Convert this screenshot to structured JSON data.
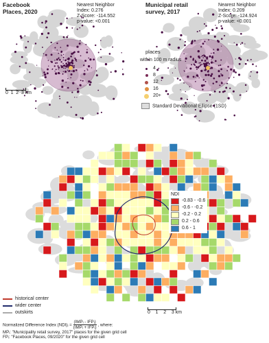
{
  "maps": [
    {
      "title": "Facebook Places, 2020",
      "stats": [
        "Nearest Neighbor",
        "Index: 0.276",
        "Z-Score: -114.552",
        "p-value: <0.001"
      ]
    },
    {
      "title": "Municipal retail survey, 2017",
      "stats": [
        "Nearest Neighbor",
        "Index: 0.209",
        "Z-Score: -124.924",
        "p-value: <0.001"
      ]
    }
  ],
  "places_legend": {
    "title": "places",
    "subtitle": "within 100 m radius",
    "classes": [
      "4",
      "8",
      "12",
      "16",
      "20+"
    ],
    "ellipse": "Standard Deviational Ellipse (1SD)"
  },
  "scale_top": [
    "0",
    "1",
    "2",
    "3 km"
  ],
  "ndi_legend": {
    "title": "NDI",
    "classes": [
      {
        "label": "-0.83 - -0.6",
        "color": "#d7191c"
      },
      {
        "label": "-0.6 - -0.2",
        "color": "#fdae61"
      },
      {
        "label": "-0.2 - 0.2",
        "color": "#ffffbf"
      },
      {
        "label": "0.2 - 0.6",
        "color": "#a6d96a"
      },
      {
        "label": "0.6 - 1",
        "color": "#2c7bb6"
      }
    ]
  },
  "boundary_legend": [
    {
      "label": "historical center",
      "color": "#c0392b"
    },
    {
      "label": "wider center",
      "color": "#1f2a6b"
    },
    {
      "label": "outskirts",
      "color": "#aaaaaa"
    }
  ],
  "scale_bottom": [
    "0",
    "1",
    "2",
    "3 km"
  ],
  "formula": {
    "lhs": "Normalized Difference Index (NDI)ᵢ =",
    "numerator": "(IMPᵢ - IFPᵢ)",
    "denominator": "(IMPᵢ + IFPᵢ)",
    "rhs": ", where:",
    "notes": [
      "MPᵢ: \"Municipality retail survey, 2017\" places for the given grid cell",
      "FPᵢ: \"Facebook Places, 09/2020\" for the given grid cell"
    ]
  }
}
